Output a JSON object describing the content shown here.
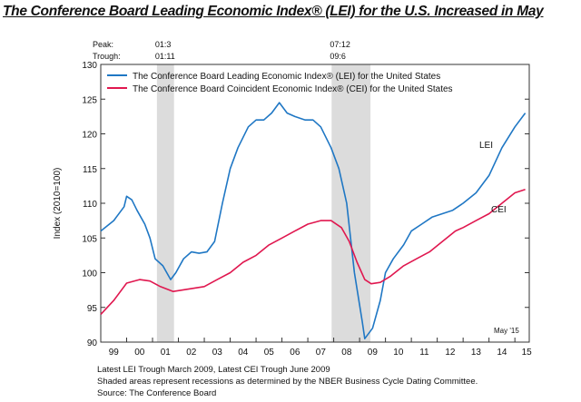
{
  "title": "The Conference Board Leading Economic Index® (LEI) for the U.S. Increased in May",
  "chart_data": {
    "type": "line",
    "ylabel": "Index (2010=100)",
    "ylim": [
      90,
      130
    ],
    "yticks": [
      90,
      95,
      100,
      105,
      110,
      115,
      120,
      125,
      130
    ],
    "xlim": [
      1999.0,
      2015.45
    ],
    "xtick_labels": [
      "99",
      "00",
      "01",
      "02",
      "03",
      "04",
      "05",
      "06",
      "07",
      "08",
      "09",
      "10",
      "11",
      "12",
      "13",
      "14",
      "15"
    ],
    "legend_placement": "top-left",
    "grid": false,
    "annotation": "May '15",
    "peak_label": "Peak:",
    "trough_label": "Trough:",
    "recessions": [
      {
        "start": 2001.17,
        "end": 2001.83,
        "peak": "01:3",
        "trough": "01:11"
      },
      {
        "start": 2007.92,
        "end": 2009.42,
        "peak": "07:12",
        "trough": "09:6"
      }
    ],
    "recession_color": "#dcdcdc",
    "series": [
      {
        "name": "The Conference Board Leading Economic Index® (LEI) for the United States",
        "label": "LEI",
        "color": "#1f77c4",
        "x": [
          1999.0,
          1999.5,
          1999.9,
          2000.0,
          2000.2,
          2000.4,
          2000.7,
          2000.9,
          2001.1,
          2001.4,
          2001.7,
          2001.9,
          2002.2,
          2002.5,
          2002.8,
          2003.1,
          2003.4,
          2003.7,
          2004.0,
          2004.3,
          2004.7,
          2005.0,
          2005.3,
          2005.6,
          2005.9,
          2006.2,
          2006.5,
          2006.9,
          2007.2,
          2007.5,
          2007.9,
          2008.2,
          2008.5,
          2008.8,
          2009.1,
          2009.2,
          2009.5,
          2009.8,
          2010.0,
          2010.3,
          2010.7,
          2011.0,
          2011.4,
          2011.8,
          2012.2,
          2012.6,
          2013.0,
          2013.5,
          2014.0,
          2014.5,
          2015.0,
          2015.4
        ],
        "y": [
          106,
          107.5,
          109.5,
          111,
          110.5,
          109,
          107,
          105,
          102,
          101,
          99,
          100,
          102,
          103,
          102.8,
          103,
          104.5,
          110,
          115,
          118,
          121,
          122,
          122,
          123,
          124.5,
          123,
          122.5,
          122,
          122,
          121,
          118,
          115,
          110,
          100,
          93,
          90.5,
          92,
          96,
          100,
          102,
          104,
          106,
          107,
          108,
          108.5,
          109,
          110,
          111.5,
          114,
          118,
          121,
          123
        ]
      },
      {
        "name": "The Conference Board Coincident Economic Index® (CEI) for the United States",
        "label": "CEI",
        "color": "#e0174f",
        "x": [
          1999.0,
          1999.5,
          2000.0,
          2000.5,
          2000.9,
          2001.3,
          2001.8,
          2002.3,
          2003.0,
          2003.5,
          2004.0,
          2004.5,
          2005.0,
          2005.5,
          2006.0,
          2006.5,
          2007.0,
          2007.5,
          2007.9,
          2008.3,
          2008.6,
          2008.9,
          2009.2,
          2009.45,
          2009.8,
          2010.2,
          2010.7,
          2011.2,
          2011.7,
          2012.2,
          2012.7,
          2013.0,
          2013.5,
          2014.0,
          2014.5,
          2015.0,
          2015.4
        ],
        "y": [
          94,
          96,
          98.5,
          99,
          98.8,
          98,
          97.3,
          97.6,
          98,
          99,
          100,
          101.5,
          102.5,
          104,
          105,
          106,
          107,
          107.5,
          107.5,
          106.5,
          104.5,
          101.5,
          99,
          98.4,
          98.6,
          99.5,
          101,
          102,
          103,
          104.5,
          106,
          106.5,
          107.5,
          108.5,
          110,
          111.5,
          112
        ]
      }
    ]
  },
  "notes": [
    "Latest LEI Trough March 2009, Latest CEI Trough June 2009",
    "Shaded areas represent recessions as determined by the NBER Business Cycle Dating Committee.",
    "Source: The Conference Board"
  ]
}
